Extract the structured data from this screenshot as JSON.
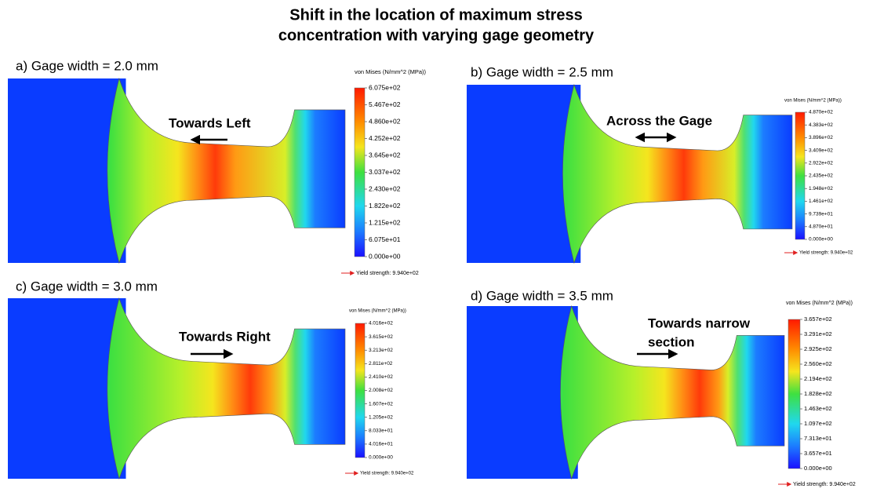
{
  "title": [
    "Shift in the location of maximum stress",
    "concentration with varying gage geometry"
  ],
  "panels": [
    {
      "label": "a) Gage width = 2.0 mm",
      "annotation": [
        "Towards Left"
      ],
      "legend_title": "von Mises (N/mm^2 (MPa))",
      "legend_ticks": [
        "6.075e+02",
        "5.467e+02",
        "4.860e+02",
        "4.252e+02",
        "3.645e+02",
        "3.037e+02",
        "2.430e+02",
        "1.822e+02",
        "1.215e+02",
        "6.075e+01",
        "0.000e+00"
      ],
      "yield_note": "Yield strength: 9.940e+02"
    },
    {
      "label": "b) Gage width = 2.5 mm",
      "annotation": [
        "Across the Gage"
      ],
      "legend_title": "von Mises (N/mm^2 (MPa))",
      "legend_ticks": [
        "4.870e+02",
        "4.383e+02",
        "3.896e+02",
        "3.409e+02",
        "2.922e+02",
        "2.435e+02",
        "1.948e+02",
        "1.461e+02",
        "9.739e+01",
        "4.870e+01",
        "0.000e+00"
      ],
      "yield_note": "Yield strength: 9.940e+02"
    },
    {
      "label": "c) Gage width = 3.0 mm",
      "annotation": [
        "Towards Right"
      ],
      "legend_title": "von Mises (N/mm^2 (MPa))",
      "legend_ticks": [
        "4.016e+02",
        "3.615e+02",
        "3.213e+02",
        "2.811e+02",
        "2.410e+02",
        "2.008e+02",
        "1.607e+02",
        "1.205e+02",
        "8.033e+01",
        "4.016e+01",
        "0.000e+00"
      ],
      "yield_note": "Yield strength: 9.940e+02"
    },
    {
      "label": "d) Gage width = 3.5 mm",
      "annotation": [
        "Towards narrow",
        "section"
      ],
      "legend_title": "von Mises (N/mm^2 (MPa))",
      "legend_ticks": [
        "3.657e+02",
        "3.291e+02",
        "2.925e+02",
        "2.560e+02",
        "2.194e+02",
        "1.828e+02",
        "1.463e+02",
        "1.097e+02",
        "7.313e+01",
        "3.657e+01",
        "0.000e+00"
      ],
      "yield_note": "Yield strength: 9.940e+02"
    }
  ]
}
